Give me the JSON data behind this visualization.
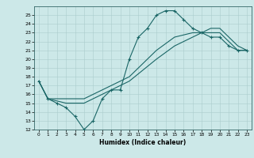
{
  "title": "",
  "xlabel": "Humidex (Indice chaleur)",
  "bg_color": "#cce8e8",
  "grid_color": "#aacccc",
  "line_color": "#1a6666",
  "xlim": [
    -0.5,
    23.5
  ],
  "ylim": [
    12,
    26
  ],
  "yticks": [
    12,
    13,
    14,
    15,
    16,
    17,
    18,
    19,
    20,
    21,
    22,
    23,
    24,
    25
  ],
  "xticks": [
    0,
    1,
    2,
    3,
    4,
    5,
    6,
    7,
    8,
    9,
    10,
    11,
    12,
    13,
    14,
    15,
    16,
    17,
    18,
    19,
    20,
    21,
    22,
    23
  ],
  "line1": {
    "x": [
      0,
      1,
      2,
      3,
      4,
      5,
      6,
      7,
      8,
      9,
      10,
      11,
      12,
      13,
      14,
      15,
      16,
      17,
      18,
      19,
      20,
      21,
      22,
      23
    ],
    "y": [
      17.5,
      15.5,
      15.0,
      14.5,
      13.5,
      12.0,
      13.0,
      15.5,
      16.5,
      16.5,
      20.0,
      22.5,
      23.5,
      25.0,
      25.5,
      25.5,
      24.5,
      23.5,
      23.0,
      22.5,
      22.5,
      21.5,
      21.0,
      21.0
    ]
  },
  "line2": {
    "x": [
      0,
      1,
      3,
      5,
      7,
      10,
      13,
      15,
      17,
      19,
      20,
      22,
      23
    ],
    "y": [
      17.5,
      15.5,
      15.5,
      15.5,
      16.5,
      18.0,
      21.0,
      22.5,
      23.0,
      23.0,
      23.0,
      21.0,
      21.0
    ]
  },
  "line3": {
    "x": [
      0,
      1,
      3,
      5,
      7,
      10,
      13,
      15,
      17,
      19,
      20,
      22,
      23
    ],
    "y": [
      17.5,
      15.5,
      15.0,
      15.0,
      16.0,
      17.5,
      20.0,
      21.5,
      22.5,
      23.5,
      23.5,
      21.5,
      21.0
    ]
  }
}
